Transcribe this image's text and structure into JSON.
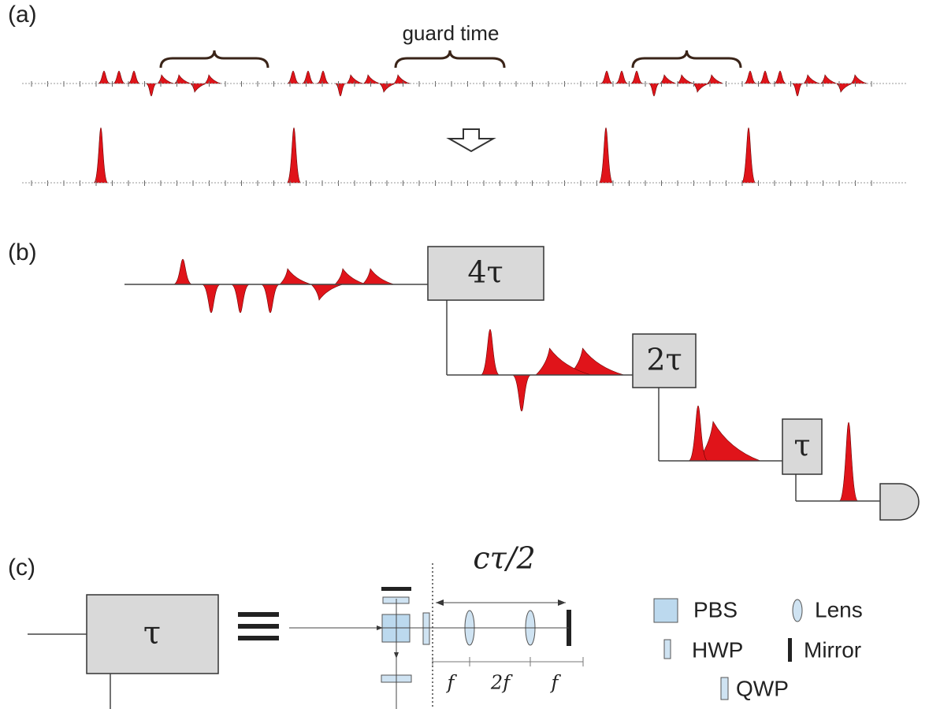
{
  "panel_a": {
    "label": "(a)",
    "annotation": "guard time"
  },
  "panel_b": {
    "label": "(b)",
    "boxes": [
      "4τ",
      "2τ",
      "τ"
    ]
  },
  "panel_c": {
    "label": "(c)",
    "box": "τ",
    "distance": "cτ/2",
    "spacings": [
      "f",
      "2f",
      "f"
    ],
    "legend": [
      "PBS",
      "Lens",
      "HWP",
      "Mirror",
      "QWP"
    ]
  }
}
